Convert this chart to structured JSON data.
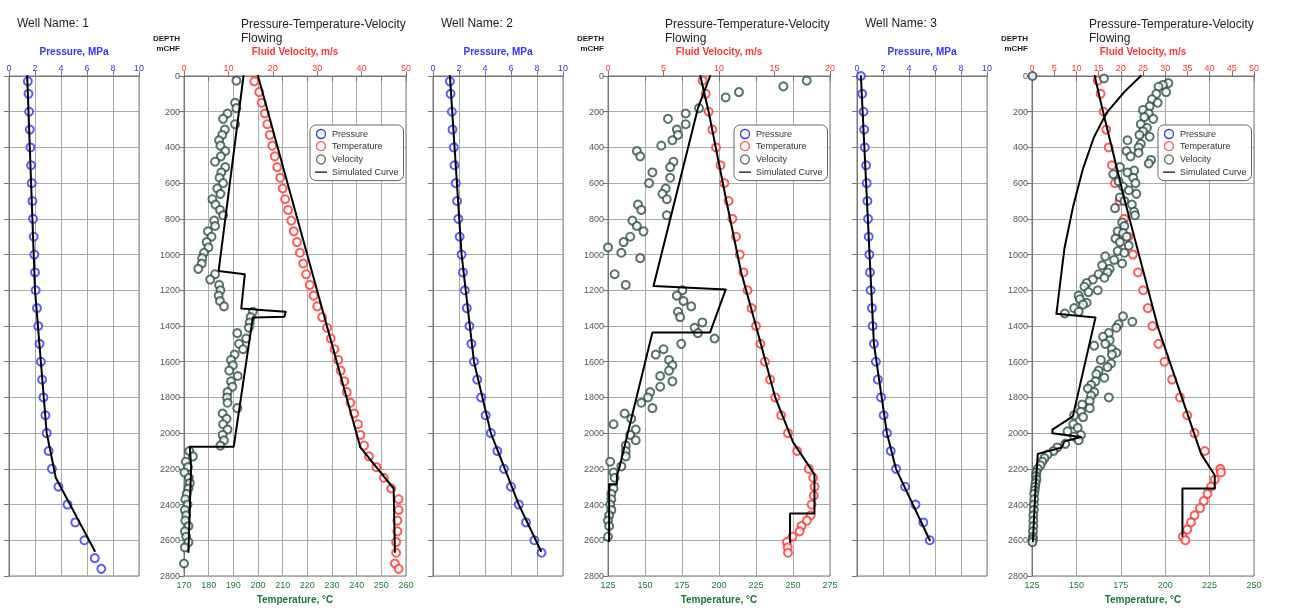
{
  "chart_data": [
    {
      "type": "scatter",
      "title": "Well Name: 1",
      "xlabel": "Pressure, MPa",
      "xlim": [
        0,
        10
      ],
      "xticks": [
        0,
        2,
        4,
        6,
        8,
        10
      ],
      "ylim": [
        2800,
        0
      ],
      "yticks": [
        0,
        200,
        400,
        600,
        800,
        1000,
        1200,
        1400,
        1600,
        1800,
        2000,
        2200,
        2400,
        2600,
        2800
      ],
      "tick_labels": "x",
      "grid": true,
      "marker": "circle",
      "series": [
        {
          "name": "Pressure",
          "color": "#3333ff",
          "x": [
            1.45,
            1.5,
            1.55,
            1.6,
            1.65,
            1.7,
            1.75,
            1.8,
            1.85,
            1.9,
            1.95,
            2.0,
            2.05,
            2.15,
            2.25,
            2.35,
            2.45,
            2.55,
            2.65,
            2.8,
            2.9,
            3.05,
            3.3,
            3.8,
            4.5,
            5.1,
            5.8,
            6.6,
            7.1
          ],
          "values": [
            30,
            100,
            200,
            300,
            400,
            500,
            600,
            700,
            800,
            900,
            1000,
            1100,
            1200,
            1300,
            1400,
            1500,
            1600,
            1700,
            1800,
            1900,
            2000,
            2100,
            2200,
            2300,
            2400,
            2500,
            2600,
            2700,
            2760
          ]
        },
        {
          "type": "line",
          "marker": "none",
          "color": "#000000",
          "x": [
            1.4,
            2.0,
            2.9,
            3.6,
            6.6
          ],
          "values": [
            0,
            1200,
            2000,
            2250,
            2660
          ]
        }
      ]
    },
    {
      "type": "scatter",
      "title": "Pressure-Temperature-Velocity Flowing",
      "xlabel": "Temperature, °C",
      "x2label": "Fluid Velocity, m/s",
      "ylabel": "DEPTH mCHF",
      "xlim": [
        170,
        260
      ],
      "xticks": [
        170,
        180,
        190,
        200,
        210,
        220,
        230,
        240,
        250,
        260
      ],
      "x2lim": [
        0,
        50
      ],
      "x2ticks": [
        0,
        10,
        20,
        30,
        40,
        50
      ],
      "ylim": [
        2800,
        0
      ],
      "yticks": [
        0,
        200,
        400,
        600,
        800,
        1000,
        1200,
        1400,
        1600,
        1800,
        2000,
        2200,
        2400,
        2600,
        2800
      ],
      "grid": true,
      "legend": "top right",
      "marker": "circle",
      "series": [
        {
          "name": "Temperature",
          "color": "#ff3333",
          "x": [
            198.5,
            200.5,
            201.5,
            202.8,
            203.8,
            204.8,
            205.8,
            206.8,
            207.8,
            209,
            210,
            211,
            212.2,
            213.5,
            214.5,
            215.8,
            217,
            218.3,
            219.5,
            221,
            222.5,
            224,
            226,
            228,
            229.5,
            231,
            232.5,
            233.5,
            235,
            236,
            237.5,
            239,
            240.5,
            241.5,
            243,
            245,
            248,
            251,
            254,
            257,
            257,
            256.5,
            256.5,
            256,
            256,
            255.5,
            257
          ],
          "values": [
            30,
            90,
            150,
            210,
            270,
            330,
            390,
            450,
            510,
            570,
            630,
            690,
            750,
            810,
            870,
            930,
            990,
            1050,
            1110,
            1170,
            1230,
            1290,
            1350,
            1410,
            1470,
            1530,
            1590,
            1650,
            1710,
            1770,
            1830,
            1890,
            1950,
            2010,
            2070,
            2130,
            2190,
            2250,
            2310,
            2370,
            2430,
            2490,
            2550,
            2610,
            2670,
            2730,
            2760
          ]
        },
        {
          "name": "Velocity",
          "axis": "x2",
          "color": "#2e5049",
          "x": [
            11.8,
            11.5,
            11.8,
            9.8,
            8.8,
            11.5,
            9.2,
            8.6,
            7.9,
            8.2,
            9.3,
            8.3,
            7.0,
            9.3,
            8.4,
            8.0,
            8.8,
            7.5,
            8.2,
            6.4,
            7.1,
            8.1,
            8.8,
            6.8,
            7.0,
            5.4,
            6.2,
            5.1,
            5.5,
            4.5,
            4.1,
            4.0,
            3.2,
            7.0,
            5.9,
            7.9,
            8.2,
            7.8,
            8.1,
            9.0,
            15.5,
            15.0,
            14.8,
            14.6,
            12.0,
            14.0,
            12.4,
            13.3,
            11.4,
            10.6,
            11.0,
            10.2,
            12.1,
            10.6,
            10.9,
            9.8,
            9.7,
            9.8,
            12.0,
            8.7,
            9.6,
            8.8,
            9.8,
            8.7,
            9.0,
            8.2,
            1.2,
            2.0,
            0.4,
            0.9,
            0.1,
            1.1,
            1.3,
            1.0,
            0.6,
            0.3,
            0.8,
            0.2,
            0.5,
            0.3,
            1.0,
            0.2,
            0.5,
            1.0,
            0.2,
            0.0
          ],
          "values": [
            26,
            150,
            180,
            210,
            240,
            270,
            300,
            330,
            360,
            390,
            420,
            450,
            480,
            510,
            540,
            570,
            600,
            630,
            660,
            690,
            720,
            750,
            780,
            810,
            840,
            870,
            900,
            930,
            960,
            990,
            1020,
            1050,
            1080,
            1110,
            1140,
            1170,
            1200,
            1230,
            1260,
            1290,
            1320,
            1350,
            1380,
            1410,
            1440,
            1470,
            1500,
            1530,
            1560,
            1590,
            1620,
            1650,
            1680,
            1710,
            1740,
            1770,
            1800,
            1830,
            1860,
            1890,
            1920,
            1950,
            1980,
            2010,
            2040,
            2070,
            2100,
            2130,
            2160,
            2190,
            2220,
            2250,
            2280,
            2310,
            2340,
            2370,
            2400,
            2430,
            2460,
            2490,
            2520,
            2550,
            2580,
            2610,
            2640,
            2730
          ]
        },
        {
          "name": "Simulated Curve",
          "type": "line",
          "marker": "none",
          "color": "#000000",
          "x": [
            200,
            241.5,
            255,
            255.5
          ],
          "values": [
            0,
            2080,
            2310,
            2666
          ]
        },
        {
          "type": "line",
          "marker": "none",
          "axis": "x2",
          "color": "#000000",
          "x": [
            13.4,
            7.8,
            13.7,
            12.9,
            22.9,
            22.6,
            15.5,
            11.2,
            1.3,
            1.6,
            1.0
          ],
          "values": [
            0,
            1092,
            1110,
            1302,
            1320,
            1348,
            1352,
            2076,
            2076,
            2186,
            2666
          ]
        }
      ]
    },
    {
      "type": "scatter",
      "title": "Well Name: 2",
      "xlabel": "Pressure, MPa",
      "xlim": [
        0,
        10
      ],
      "xticks": [
        0,
        2,
        4,
        6,
        8,
        10
      ],
      "ylim": [
        2800,
        0
      ],
      "yticks": [
        0,
        200,
        400,
        600,
        800,
        1000,
        1200,
        1400,
        1600,
        1800,
        2000,
        2200,
        2400,
        2600,
        2800
      ],
      "tick_labels": "x",
      "grid": true,
      "marker": "circle",
      "series": [
        {
          "name": "Pressure",
          "color": "#3333ff",
          "x": [
            1.3,
            1.35,
            1.45,
            1.5,
            1.6,
            1.65,
            1.75,
            1.85,
            1.95,
            2.05,
            2.2,
            2.3,
            2.45,
            2.6,
            2.8,
            2.95,
            3.15,
            3.4,
            3.7,
            4.05,
            4.45,
            4.95,
            5.45,
            6.0,
            6.6,
            7.15,
            7.8,
            8.35
          ],
          "values": [
            30,
            100,
            200,
            300,
            400,
            500,
            600,
            700,
            800,
            900,
            1000,
            1100,
            1200,
            1300,
            1400,
            1500,
            1600,
            1700,
            1800,
            1900,
            2000,
            2100,
            2200,
            2300,
            2400,
            2500,
            2600,
            2670
          ]
        },
        {
          "type": "line",
          "marker": "none",
          "color": "#000000",
          "x": [
            1.3,
            2.2,
            3.15,
            4.45,
            6.6,
            8.3
          ],
          "values": [
            0,
            1000,
            1600,
            2000,
            2400,
            2660
          ]
        }
      ]
    },
    {
      "type": "scatter",
      "title": "Pressure-Temperature-Velocity Flowing",
      "xlabel": "Temperature, °C",
      "x2label": "Fluid Velocity, m/s",
      "ylabel": "DEPTH mCHF",
      "xlim": [
        125,
        275
      ],
      "xticks": [
        125,
        150,
        175,
        200,
        225,
        250,
        275
      ],
      "x2lim": [
        0,
        20
      ],
      "x2ticks": [
        0,
        5,
        10,
        15,
        20
      ],
      "ylim": [
        2800,
        0
      ],
      "yticks": [
        0,
        200,
        400,
        600,
        800,
        1000,
        1200,
        1400,
        1600,
        1800,
        2000,
        2200,
        2400,
        2600,
        2800
      ],
      "grid": true,
      "legend": "top right",
      "marker": "circle",
      "series": [
        {
          "name": "Temperature",
          "color": "#ff3333",
          "x": [
            188.9,
            191,
            193,
            195.5,
            198,
            201,
            203.6,
            206.5,
            209,
            211.5,
            214,
            216.5,
            219.3,
            222,
            225,
            228,
            231,
            234.5,
            238,
            242,
            246.6,
            252.8,
            260.6,
            263.6,
            264.6,
            264,
            262.6,
            262,
            259.4,
            255.7,
            254.5,
            249.6,
            245.9,
            246.4,
            246.6
          ],
          "values": [
            26,
            100,
            200,
            300,
            400,
            500,
            600,
            700,
            800,
            900,
            1000,
            1100,
            1200,
            1300,
            1400,
            1500,
            1600,
            1700,
            1800,
            1900,
            2000,
            2100,
            2200,
            2250,
            2300,
            2350,
            2400,
            2460,
            2490,
            2520,
            2550,
            2580,
            2610,
            2640,
            2670
          ]
        },
        {
          "name": "Velocity",
          "axis": "x2",
          "color": "#2e5049",
          "x": [
            17.9,
            15.8,
            11.8,
            10.6,
            8.2,
            7.0,
            5.4,
            7.0,
            6.2,
            6.3,
            5.8,
            4.8,
            2.6,
            2.9,
            5.9,
            5.6,
            4.0,
            5.6,
            3.7,
            5.2,
            4.9,
            5.3,
            2.7,
            3.0,
            5.3,
            2.2,
            2.6,
            3.2,
            2.0,
            1.4,
            0.0,
            1.2,
            2.9,
            0.6,
            1.6,
            6.7,
            6.2,
            6.8,
            7.5,
            6.3,
            6.5,
            8.5,
            7.8,
            8.1,
            9.6,
            6.6,
            5.0,
            4.3,
            5.5,
            5.8,
            5.5,
            4.7,
            5.8,
            4.7,
            3.8,
            3.6,
            3.0,
            4.0,
            1.5,
            2.1,
            0.5,
            2.5,
            2.0,
            2.5,
            1.6,
            1.6,
            1.6,
            0.2,
            1.2,
            0.5,
            0.6,
            0.5,
            0.3,
            0.3,
            0.2,
            0.3,
            0.1,
            0.0,
            0.1,
            0.0
          ],
          "values": [
            26,
            58,
            90,
            120,
            180,
            210,
            240,
            270,
            300,
            330,
            360,
            390,
            420,
            450,
            480,
            510,
            540,
            570,
            600,
            630,
            660,
            690,
            720,
            750,
            780,
            810,
            840,
            870,
            900,
            930,
            960,
            990,
            1020,
            1110,
            1170,
            1200,
            1230,
            1260,
            1290,
            1320,
            1350,
            1380,
            1410,
            1440,
            1470,
            1500,
            1530,
            1560,
            1590,
            1620,
            1650,
            1680,
            1710,
            1740,
            1770,
            1800,
            1830,
            1860,
            1890,
            1920,
            1950,
            1980,
            2010,
            2040,
            2070,
            2100,
            2130,
            2160,
            2186,
            2220,
            2250,
            2310,
            2340,
            2370,
            2400,
            2430,
            2460,
            2490,
            2520,
            2580
          ]
        },
        {
          "name": "Simulated Curve",
          "type": "line",
          "marker": "none",
          "color": "#000000",
          "x": [
            187.4,
            193,
            205,
            215,
            225,
            238,
            250,
            264.5,
            264.5,
            248,
            248
          ],
          "values": [
            0,
            200,
            700,
            1100,
            1400,
            1800,
            2050,
            2230,
            2450,
            2450,
            2610
          ]
        },
        {
          "type": "line",
          "marker": "none",
          "axis": "x2",
          "color": "#000000",
          "x": [
            9.2,
            8.1,
            4.1,
            10.6,
            9.2,
            4.0,
            1.0,
            0.8,
            0.8,
            0.1,
            0.1
          ],
          "values": [
            0,
            180,
            1176,
            1196,
            1436,
            1436,
            2200,
            2236,
            2286,
            2286,
            2606
          ]
        }
      ]
    },
    {
      "type": "scatter",
      "title": "Well Name: 3",
      "xlabel": "Pressure, MPa",
      "xlim": [
        0,
        10
      ],
      "xticks": [
        0,
        2,
        4,
        6,
        8,
        10
      ],
      "ylim": [
        2800,
        0
      ],
      "yticks": [
        0,
        200,
        400,
        600,
        800,
        1000,
        1200,
        1400,
        1600,
        1800,
        2000,
        2200,
        2400,
        2600,
        2800
      ],
      "tick_labels": "x",
      "grid": true,
      "marker": "circle",
      "series": [
        {
          "name": "Pressure",
          "color": "#3333ff",
          "x": [
            0.3,
            0.4,
            0.5,
            0.55,
            0.6,
            0.7,
            0.75,
            0.8,
            0.85,
            0.9,
            0.95,
            1.0,
            1.05,
            1.15,
            1.2,
            1.3,
            1.45,
            1.6,
            1.85,
            2.05,
            2.3,
            2.6,
            3.0,
            3.7,
            4.5,
            5.1,
            5.6
          ],
          "values": [
            0,
            100,
            200,
            300,
            400,
            500,
            600,
            700,
            800,
            900,
            1000,
            1100,
            1200,
            1300,
            1400,
            1500,
            1600,
            1700,
            1800,
            1900,
            2000,
            2100,
            2200,
            2300,
            2400,
            2500,
            2600
          ]
        },
        {
          "type": "line",
          "marker": "none",
          "color": "#000000",
          "x": [
            0.3,
            1.3,
            2.3,
            3.0,
            5.6
          ],
          "values": [
            0,
            1500,
            2000,
            2200,
            2600
          ]
        }
      ]
    },
    {
      "type": "scatter",
      "title": "Pressure-Temperature-Velocity Flowing",
      "xlabel": "Temperature, °C",
      "x2label": "Fluid Velocity, m/s",
      "ylabel": "DEPTH mCHF",
      "xlim": [
        125,
        250
      ],
      "xticks": [
        125,
        150,
        175,
        200,
        225,
        250
      ],
      "x2lim": [
        0,
        50
      ],
      "x2ticks": [
        0,
        5,
        10,
        15,
        20,
        25,
        30,
        35,
        40,
        45,
        50
      ],
      "ylim": [
        2800,
        0
      ],
      "yticks": [
        0,
        200,
        400,
        600,
        800,
        1000,
        1200,
        1400,
        1600,
        1800,
        2000,
        2200,
        2400,
        2600,
        2800
      ],
      "grid": true,
      "legend": "top right",
      "marker": "circle",
      "series": [
        {
          "name": "Temperature",
          "color": "#ff3333",
          "x": [
            162,
            163.6,
            165.3,
            166.8,
            168.2,
            170,
            171.7,
            174.3,
            176.9,
            179.3,
            181.8,
            184.7,
            187.6,
            190.2,
            192.8,
            196.2,
            199.6,
            203.9,
            208.3,
            212.4,
            216.5,
            222.3,
            231,
            231.4,
            227.9,
            225.8,
            223.8,
            221.7,
            219.6,
            216.5,
            214.5,
            212.4,
            209.9,
            211.4
          ],
          "values": [
            26,
            100,
            200,
            300,
            400,
            500,
            600,
            700,
            800,
            900,
            1000,
            1100,
            1200,
            1300,
            1400,
            1500,
            1600,
            1700,
            1800,
            1900,
            2000,
            2100,
            2200,
            2220,
            2260,
            2300,
            2340,
            2380,
            2420,
            2460,
            2500,
            2540,
            2580,
            2600
          ]
        },
        {
          "name": "Velocity",
          "axis": "x2",
          "color": "#2e5049",
          "x": [
            0.1,
            16.2,
            30.7,
            29.5,
            28.5,
            30.2,
            28.0,
            27.0,
            28.3,
            26.5,
            25.0,
            26.3,
            25.3,
            27.3,
            24.5,
            25.9,
            25.0,
            24.2,
            26.5,
            21.5,
            24.5,
            24.0,
            21.3,
            24.0,
            22.2,
            26.8,
            26.3,
            19.8,
            23.0,
            21.5,
            18.3,
            22.8,
            19.5,
            23.3,
            20.5,
            21.8,
            23.5,
            19.8,
            20.8,
            22.5,
            18.7,
            23.0,
            23.2,
            20.3,
            20.8,
            19.3,
            20.5,
            21.3,
            18.8,
            19.8,
            21.8,
            19.3,
            20.8,
            16.5,
            18.5,
            20.3,
            15.8,
            17.5,
            17.0,
            15.0,
            16.3,
            13.7,
            12.3,
            11.8,
            14.8,
            12.7,
            10.5,
            10.8,
            12.3,
            11.5,
            9.5,
            10.5,
            7.4,
            20.5,
            22.6,
            19.5,
            19.0,
            17.3,
            16.0,
            17.5,
            16.5,
            14.0,
            18.0,
            19.0,
            18.0,
            15.5,
            17.8,
            17.0,
            15.0,
            14.5,
            16.3,
            14.3,
            13.3,
            12.6,
            14.0,
            13.3,
            17.3,
            13.0,
            11.3,
            13.0,
            11.0,
            9.5,
            11.5,
            9.3,
            10.3,
            8.0,
            11.0,
            9.5,
            10.5,
            7.5,
            5.7,
            4.8,
            3.5,
            2.8,
            2.3,
            1.9,
            1.3,
            1.0,
            0.9,
            1.0,
            0.8,
            0.7,
            0.6,
            0.5,
            0.5,
            0.4,
            0.4,
            0.3,
            0.3,
            0.3,
            0.2,
            0.2,
            0.2,
            0.1
          ],
          "values": [
            0,
            14,
            40,
            50,
            60,
            90,
            100,
            130,
            150,
            170,
            190,
            210,
            230,
            240,
            270,
            290,
            310,
            330,
            340,
            360,
            380,
            400,
            420,
            430,
            450,
            470,
            490,
            510,
            530,
            540,
            550,
            570,
            590,
            600,
            620,
            640,
            660,
            680,
            700,
            720,
            740,
            760,
            780,
            820,
            840,
            870,
            880,
            900,
            910,
            930,
            950,
            980,
            990,
            1010,
            1030,
            1050,
            1060,
            1080,
            1100,
            1110,
            1130,
            1140,
            1160,
            1180,
            1200,
            1210,
            1230,
            1250,
            1270,
            1280,
            1300,
            1320,
            1330,
            1346,
            1376,
            1390,
            1410,
            1440,
            1460,
            1480,
            1500,
            1510,
            1530,
            1550,
            1560,
            1590,
            1610,
            1630,
            1650,
            1670,
            1690,
            1710,
            1730,
            1750,
            1770,
            1790,
            1800,
            1820,
            1840,
            1860,
            1880,
            1900,
            1910,
            1950,
            1970,
            1990,
            2010,
            2020,
            2040,
            2060,
            2080,
            2100,
            2120,
            2140,
            2160,
            2180,
            2200,
            2220,
            2240,
            2260,
            2280,
            2300,
            2320,
            2340,
            2370,
            2400,
            2430,
            2460,
            2490,
            2520,
            2550,
            2580,
            2595,
            2610
          ]
        },
        {
          "name": "Simulated Curve",
          "type": "line",
          "marker": "none",
          "color": "#000000",
          "x": [
            160.3,
            165,
            177.3,
            195.9,
            220.2,
            227.9,
            227.9,
            209.7,
            209.7
          ],
          "values": [
            0,
            200,
            700,
            1406,
            2116,
            2236,
            2310,
            2310,
            2576
          ]
        },
        {
          "type": "line",
          "marker": "none",
          "axis": "x2",
          "color": "#000000",
          "x": [
            24.5,
            20.9,
            16.8,
            13.9,
            11.4,
            9.3,
            7.3,
            5.5,
            14.3,
            9.2,
            4.6,
            4.6,
            11.0,
            7.3,
            6.7,
            1.3,
            0.8,
            0.2
          ],
          "values": [
            0,
            86,
            206,
            346,
            526,
            726,
            966,
            1332,
            1352,
            1906,
            1980,
            2000,
            2022,
            2046,
            2080,
            2116,
            2306,
            2606
          ]
        }
      ]
    }
  ]
}
